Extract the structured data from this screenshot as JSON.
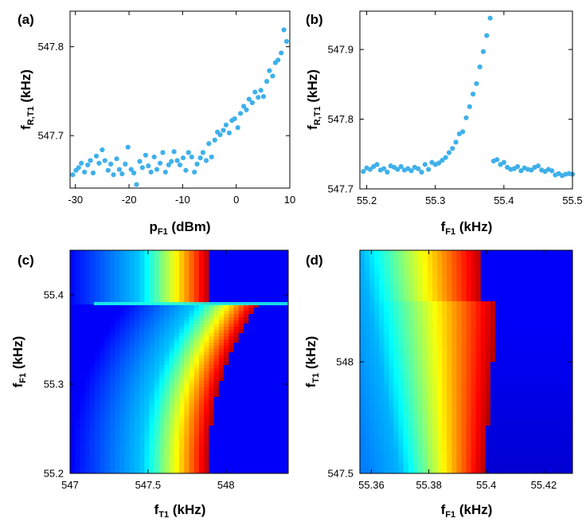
{
  "chart_data": [
    {
      "id": "a",
      "type": "scatter",
      "panel_label": "(a)",
      "xlabel": {
        "main": "p",
        "sub": "F1",
        "unit": " (dBm)"
      },
      "ylabel": {
        "main": "f",
        "sub": "R,T1",
        "unit": " (kHz)"
      },
      "xlim": [
        -31,
        10
      ],
      "ylim": [
        547.641,
        547.84
      ],
      "xticks": [
        -30,
        -20,
        -10,
        0,
        10
      ],
      "xtick_labels": [
        "-30",
        "-20",
        "-10",
        "0",
        "10"
      ],
      "yticks": [
        547.7,
        547.8
      ],
      "ytick_labels": [
        "547.7",
        "547.8"
      ],
      "marker_color": "#3fb0ea",
      "x": [
        -30.5,
        -29.9,
        -29.4,
        -28.9,
        -28.3,
        -27.7,
        -27.2,
        -26.7,
        -26.1,
        -25.6,
        -25.0,
        -24.5,
        -23.9,
        -23.4,
        -22.9,
        -22.3,
        -21.8,
        -21.3,
        -20.7,
        -20.2,
        -19.6,
        -19.1,
        -18.6,
        -18.0,
        -17.5,
        -16.9,
        -16.4,
        -15.9,
        -15.3,
        -14.8,
        -14.2,
        -13.7,
        -13.2,
        -12.6,
        -12.1,
        -11.6,
        -11.0,
        -10.5,
        -9.9,
        -9.4,
        -8.9,
        -8.3,
        -7.8,
        -7.3,
        -6.7,
        -6.2,
        -5.6,
        -5.1,
        -4.6,
        -4.0,
        -3.5,
        -3.0,
        -2.4,
        -1.9,
        -1.3,
        -0.8,
        -0.3,
        0.3,
        0.8,
        1.4,
        1.9,
        2.4,
        3.0,
        3.5,
        4.1,
        4.6,
        5.1,
        5.7,
        6.2,
        6.8,
        7.3,
        7.8,
        8.4,
        8.9,
        9.4
      ],
      "y": [
        547.656,
        547.661,
        547.664,
        547.669,
        547.659,
        547.667,
        547.672,
        547.658,
        547.677,
        547.669,
        547.684,
        547.672,
        547.661,
        547.668,
        547.656,
        547.674,
        547.662,
        547.657,
        547.668,
        547.687,
        547.662,
        547.658,
        547.645,
        547.671,
        547.664,
        547.678,
        547.666,
        547.659,
        547.676,
        547.662,
        547.669,
        547.681,
        547.659,
        547.667,
        547.671,
        547.682,
        547.672,
        547.667,
        547.675,
        547.661,
        547.681,
        547.676,
        547.659,
        547.668,
        547.675,
        547.681,
        547.672,
        547.691,
        547.676,
        547.695,
        547.704,
        547.701,
        547.706,
        547.712,
        547.703,
        547.717,
        547.719,
        547.709,
        547.725,
        547.733,
        547.729,
        547.741,
        547.737,
        547.749,
        547.743,
        547.751,
        547.744,
        547.761,
        547.773,
        547.767,
        547.782,
        547.785,
        547.793,
        547.819,
        547.806
      ]
    },
    {
      "id": "b",
      "type": "scatter",
      "panel_label": "(b)",
      "xlabel": {
        "main": "f",
        "sub": "F1",
        "unit": " (kHz)"
      },
      "ylabel": {
        "main": "f",
        "sub": "R,T1",
        "unit": " (kHz)"
      },
      "xlim": [
        55.19,
        55.5
      ],
      "ylim": [
        547.7,
        547.955
      ],
      "xticks": [
        55.2,
        55.3,
        55.4,
        55.5
      ],
      "xtick_labels": [
        "55.2",
        "55.3",
        "55.4",
        "55.5"
      ],
      "yticks": [
        547.7,
        547.8,
        547.9
      ],
      "ytick_labels": [
        "547.7",
        "547.8",
        "547.9"
      ],
      "marker_color": "#3fb0ea",
      "x": [
        55.195,
        55.2,
        55.205,
        55.21,
        55.215,
        55.22,
        55.225,
        55.23,
        55.235,
        55.24,
        55.245,
        55.25,
        55.255,
        55.26,
        55.265,
        55.27,
        55.275,
        55.28,
        55.285,
        55.29,
        55.295,
        55.3,
        55.305,
        55.31,
        55.315,
        55.32,
        55.325,
        55.33,
        55.335,
        55.34,
        55.345,
        55.35,
        55.355,
        55.36,
        55.365,
        55.37,
        55.375,
        55.38,
        55.385,
        55.39,
        55.395,
        55.4,
        55.405,
        55.41,
        55.415,
        55.42,
        55.425,
        55.43,
        55.435,
        55.44,
        55.445,
        55.45,
        55.455,
        55.46,
        55.465,
        55.47,
        55.475,
        55.48,
        55.485,
        55.49,
        55.495,
        55.5
      ],
      "y": [
        547.725,
        547.73,
        547.728,
        547.732,
        547.735,
        547.727,
        547.729,
        547.724,
        547.733,
        547.731,
        547.728,
        547.732,
        547.727,
        547.729,
        547.726,
        547.731,
        547.729,
        547.724,
        547.735,
        547.728,
        547.738,
        547.735,
        547.737,
        547.741,
        547.745,
        547.752,
        547.758,
        547.767,
        547.779,
        547.782,
        547.802,
        547.818,
        547.836,
        547.851,
        547.875,
        547.897,
        547.92,
        547.945,
        547.74,
        547.742,
        547.735,
        547.738,
        547.731,
        547.728,
        547.729,
        547.732,
        547.726,
        547.73,
        547.728,
        547.727,
        547.731,
        547.733,
        547.727,
        547.725,
        547.728,
        547.726,
        547.72,
        547.722,
        547.719,
        547.721,
        547.722,
        547.721
      ],
      "_note": "x values interpreted with point spacing 0.005 kHz across 55.195-55.5"
    },
    {
      "id": "c",
      "type": "heatmap",
      "panel_label": "(c)",
      "xlabel": {
        "main": "f",
        "sub": "T1",
        "unit": " (kHz)"
      },
      "ylabel": {
        "main": "f",
        "sub": "F1",
        "unit": " (kHz)"
      },
      "xlim": [
        547.0,
        548.4
      ],
      "ylim": [
        55.2,
        55.45
      ],
      "xticks": [
        547,
        547.5,
        548
      ],
      "xtick_labels": [
        "547",
        "547.5",
        "548"
      ],
      "yticks": [
        55.2,
        55.3,
        55.4
      ],
      "ytick_labels": [
        "55.2",
        "55.3",
        "55.4"
      ],
      "colormap": "jet"
    },
    {
      "id": "d",
      "type": "heatmap",
      "panel_label": "(d)",
      "xlabel": {
        "main": "f",
        "sub": "F1",
        "unit": " (kHz)"
      },
      "ylabel": {
        "main": "f",
        "sub": "T1",
        "unit": " (kHz)"
      },
      "xlim": [
        55.356,
        55.43
      ],
      "ylim": [
        547.5,
        548.5
      ],
      "xticks": [
        55.36,
        55.38,
        55.4,
        55.42
      ],
      "xtick_labels": [
        "55.36",
        "55.38",
        "55.4",
        "55.42"
      ],
      "yticks": [
        547.5,
        548
      ],
      "ytick_labels": [
        "547.5",
        "548"
      ],
      "colormap": "jet"
    }
  ]
}
